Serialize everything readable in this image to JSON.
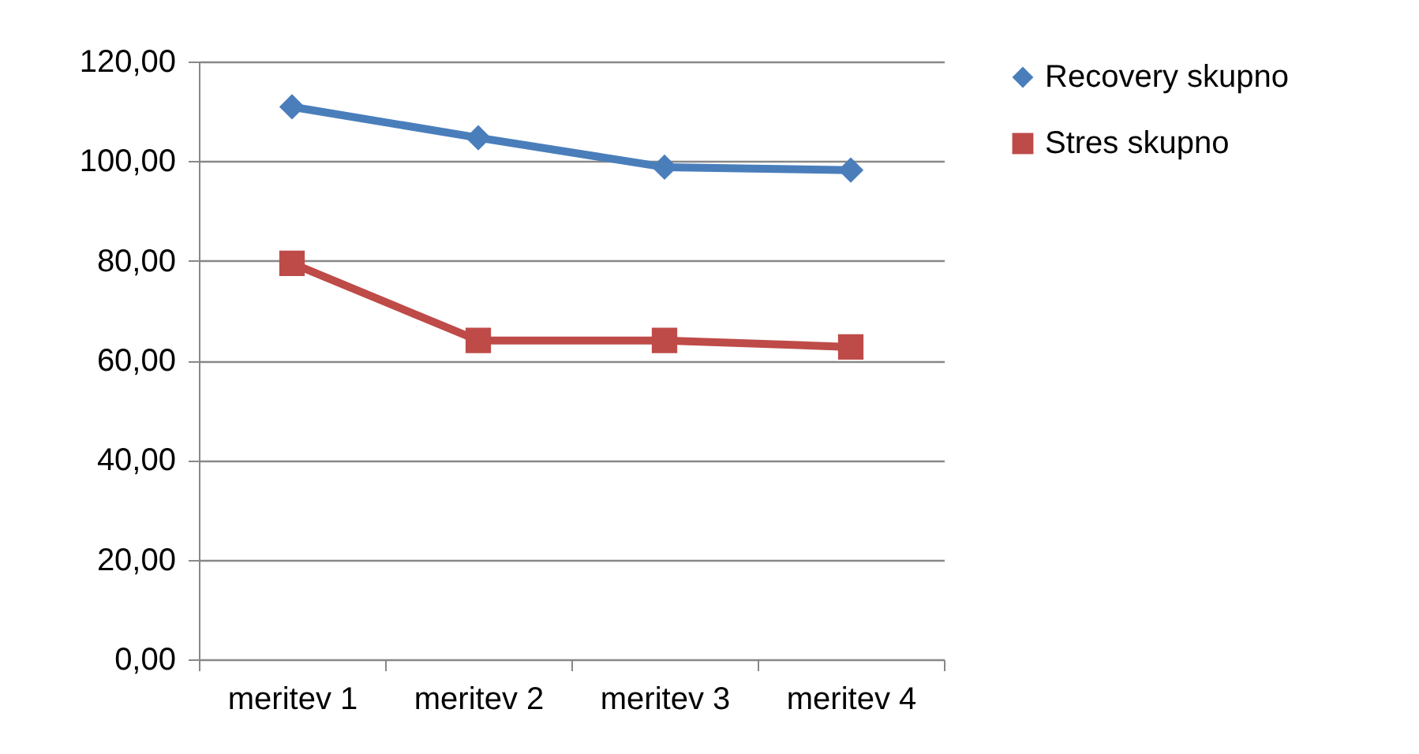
{
  "chart_data": {
    "type": "line",
    "categories": [
      "meritev 1",
      "meritev 2",
      "meritev 3",
      "meritev 4"
    ],
    "series": [
      {
        "name": "Recovery skupno",
        "color": "#4a7ebb",
        "marker": "diamond",
        "values": [
          110.9,
          104.7,
          98.8,
          98.2
        ]
      },
      {
        "name": "Stres skupno",
        "color": "#be4b48",
        "marker": "square",
        "values": [
          79.5,
          64.0,
          64.0,
          62.7
        ]
      }
    ],
    "ylim": [
      0,
      120
    ],
    "yticks": [
      {
        "value": 0,
        "label": "0,00"
      },
      {
        "value": 20,
        "label": "20,00"
      },
      {
        "value": 40,
        "label": "40,00"
      },
      {
        "value": 60,
        "label": "60,00"
      },
      {
        "value": 80,
        "label": "80,00"
      },
      {
        "value": 100,
        "label": "100,00"
      },
      {
        "value": 120,
        "label": "120,00"
      }
    ],
    "grid": "y",
    "legend": "right",
    "line_style": "solid"
  }
}
